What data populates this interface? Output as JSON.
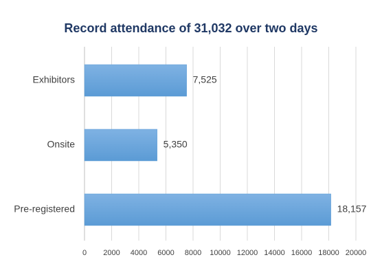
{
  "chart_data": {
    "type": "bar",
    "orientation": "horizontal",
    "title": "Record attendance of 31,032 over two days",
    "categories": [
      "Exhibitors",
      "Onsite",
      "Pre-registered"
    ],
    "values": [
      7525,
      5350,
      18157
    ],
    "value_labels": [
      "7,525",
      "5,350",
      "18,157"
    ],
    "color": "#5b9bd5",
    "xlim": [
      0,
      20000
    ],
    "xticks": [
      0,
      2000,
      4000,
      6000,
      8000,
      10000,
      12000,
      14000,
      16000,
      18000,
      20000
    ],
    "grid": true
  }
}
